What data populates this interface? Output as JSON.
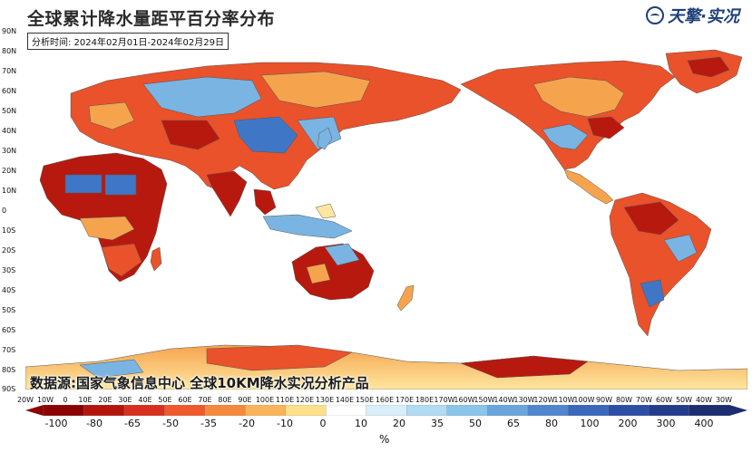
{
  "title": "全球累计降水量距平百分率分布",
  "period": "分析时间: 2024年02月01日-2024年02月29日",
  "logo": {
    "text": "天擎·实况",
    "icon": "tianqing-logo-icon"
  },
  "source": "数据源:国家气象信息中心 全球10KM降水实况分析产品",
  "lat_labels": [
    "90N",
    "80N",
    "70N",
    "60N",
    "50N",
    "40N",
    "30N",
    "20N",
    "10N",
    "0",
    "10S",
    "20S",
    "30S",
    "40S",
    "50S",
    "60S",
    "70S",
    "80S",
    "90S"
  ],
  "lon_labels": [
    "20W",
    "10W",
    "0",
    "10E",
    "20E",
    "30E",
    "40E",
    "50E",
    "60E",
    "70E",
    "80E",
    "90E",
    "100E",
    "110E",
    "120E",
    "130E",
    "140E",
    "150E",
    "160E",
    "170E",
    "180E",
    "170W",
    "160W",
    "150W",
    "140W",
    "130W",
    "120W",
    "110W",
    "100W",
    "90W",
    "80W",
    "70W",
    "60W",
    "50W",
    "40W",
    "30W"
  ],
  "colorbar": {
    "unit": "%",
    "labels": [
      "-100",
      "-80",
      "-65",
      "-50",
      "-35",
      "-20",
      "-10",
      "0",
      "10",
      "20",
      "35",
      "50",
      "65",
      "80",
      "100",
      "200",
      "300",
      "400"
    ],
    "colors": [
      "#8b0000",
      "#b3150d",
      "#d7301f",
      "#ef5a2a",
      "#f5893c",
      "#fab55a",
      "#fde089",
      "#ffffff",
      "#d8eefa",
      "#b1dbf2",
      "#8cc4ea",
      "#6aa6dd",
      "#4f86cd",
      "#3a68bb",
      "#2c4ea5",
      "#233c8c",
      "#1c2d70"
    ]
  },
  "colors": {
    "ocean": "#ffffff",
    "coast": "#555555",
    "dry_extreme": "#b8190f",
    "dry": "#e9522a",
    "dry_mild": "#f6a34e",
    "normal": "#fde7a0",
    "wet": "#79b4e3",
    "wet_strong": "#3f76c6"
  }
}
